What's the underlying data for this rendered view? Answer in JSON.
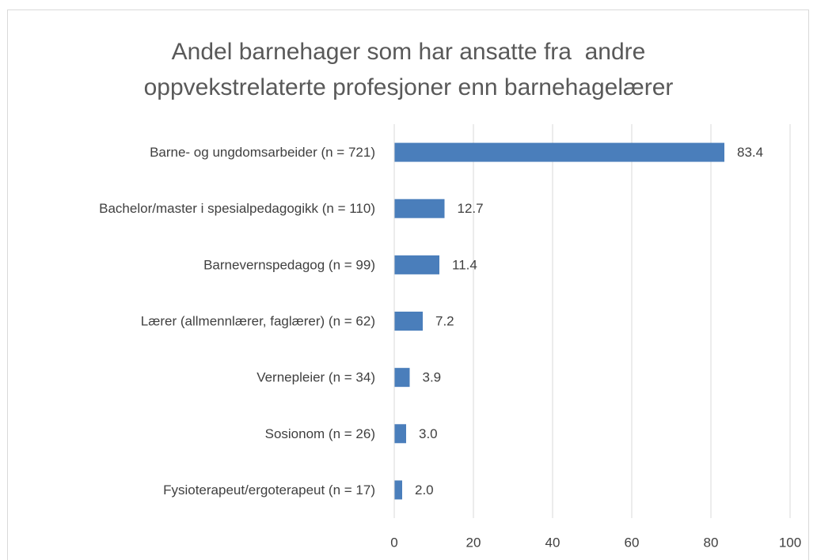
{
  "chart_data": {
    "type": "bar",
    "orientation": "horizontal",
    "title": [
      "Andel barnehager som har ansatte fra  andre",
      "oppvekstrelaterte profesjoner enn barnehagelærer"
    ],
    "categories": [
      "Barne- og ungdomsarbeider (n = 721)",
      "Bachelor/master i spesialpedagogikk (n = 110)",
      "Barnevernspedagog (n = 99)",
      "Lærer (allmennlærer, faglærer) (n = 62)",
      "Vernepleier (n = 34)",
      "Sosionom (n = 26)",
      "Fysioterapeut/ergoterapeut (n = 17)"
    ],
    "values": [
      83.4,
      12.7,
      11.4,
      7.2,
      3.9,
      3.0,
      2.0
    ],
    "value_labels": [
      "83.4",
      "12.7",
      "11.4",
      "7.2",
      "3.9",
      "3.0",
      "2.0"
    ],
    "color": "#4a7ebb",
    "xlim": [
      0,
      100
    ],
    "xticks": [
      0,
      20,
      40,
      60,
      80,
      100
    ],
    "grid": true
  }
}
